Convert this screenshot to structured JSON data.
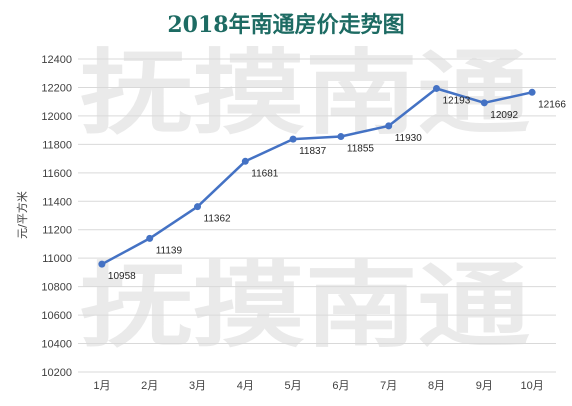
{
  "watermark": {
    "line1": "抚摸南通",
    "line2": "抚摸南通"
  },
  "chart_data": {
    "type": "line",
    "title": "2018年南通房价走势图",
    "xlabel": "",
    "ylabel": "元/平方米",
    "categories": [
      "1月",
      "2月",
      "3月",
      "4月",
      "5月",
      "6月",
      "7月",
      "8月",
      "9月",
      "10月"
    ],
    "values": [
      10958,
      11139,
      11362,
      11681,
      11837,
      11855,
      11930,
      12193,
      12092,
      12166
    ],
    "ylim": [
      10200,
      12400
    ],
    "yticks": [
      10200,
      10400,
      10600,
      10800,
      11000,
      11200,
      11400,
      11600,
      11800,
      12000,
      12200,
      12400
    ],
    "grid": true,
    "legend": "none",
    "line_color": "#4472c4",
    "grid_color": "#d9d9d9"
  }
}
